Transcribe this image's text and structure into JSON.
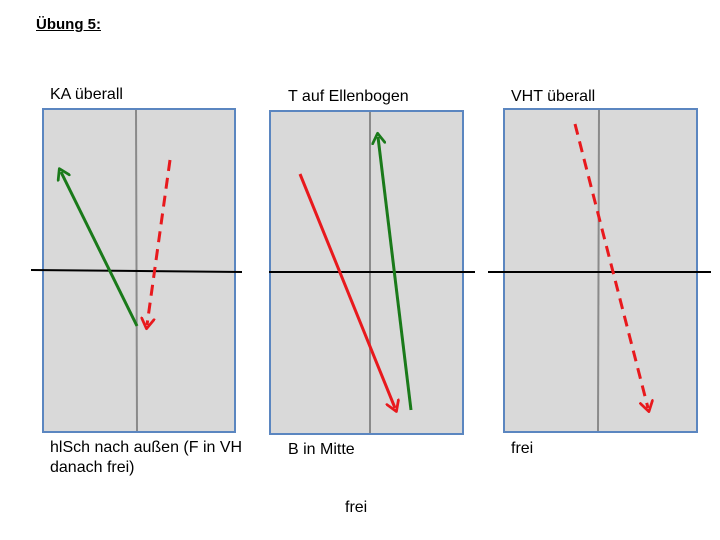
{
  "title": "Übung 5:",
  "colors": {
    "panel_fill": "#d9d9d9",
    "panel_border": "#5b86c0",
    "vertical_line": "#8a8a8a",
    "horizontal_line": "#000000",
    "green_arrow": "#1a7a1a",
    "red_arrow": "#e8191d"
  },
  "panels": [
    {
      "top_label": "KA überall",
      "bottom_label": "hlSch nach außen (F in VH danach frei)"
    },
    {
      "top_label": "T auf Ellenbogen",
      "bottom_label": "B in Mitte"
    },
    {
      "top_label": "VHT überall",
      "bottom_label": "frei"
    }
  ],
  "footer": "frei"
}
